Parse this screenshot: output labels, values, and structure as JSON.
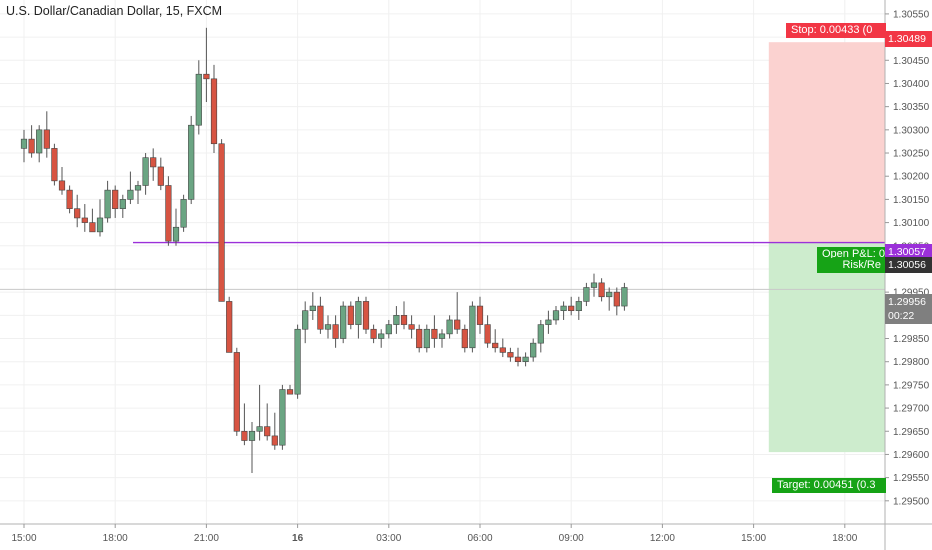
{
  "chart_title": "U.S. Dollar/Canadian Dollar, 15, FXCM",
  "colors": {
    "up": "#6ba583",
    "down": "#d75442",
    "stop_zone": "#fbd2d0",
    "target_zone": "#cdeccd",
    "entry_line": "#9b30d9",
    "stop": "#f23645",
    "target": "#16a316",
    "price_badge": "#7f7f7f",
    "axis_text": "#555555",
    "grid": "#f0f0f0"
  },
  "chart_data": {
    "type": "candlestick",
    "y_range": [
      1.2945,
      1.3058
    ],
    "y_ticks": [
      "1.30550",
      "1.30500",
      "1.30450",
      "1.30400",
      "1.30350",
      "1.30300",
      "1.30250",
      "1.30200",
      "1.30150",
      "1.30100",
      "1.30050",
      "1.30000",
      "1.29950",
      "1.29900",
      "1.29850",
      "1.29800",
      "1.29750",
      "1.29700",
      "1.29650",
      "1.29600",
      "1.29550",
      "1.29500"
    ],
    "x_ticks": [
      {
        "index": 0,
        "label": "15:00",
        "bold": false
      },
      {
        "index": 12,
        "label": "18:00",
        "bold": false
      },
      {
        "index": 24,
        "label": "21:00",
        "bold": false
      },
      {
        "index": 36,
        "label": "16",
        "bold": true
      },
      {
        "index": 48,
        "label": "03:00",
        "bold": false
      },
      {
        "index": 60,
        "label": "06:00",
        "bold": false
      },
      {
        "index": 72,
        "label": "09:00",
        "bold": false
      },
      {
        "index": 84,
        "label": "12:00",
        "bold": false
      },
      {
        "index": 96,
        "label": "15:00",
        "bold": false
      },
      {
        "index": 108,
        "label": "18:00",
        "bold": false
      }
    ],
    "candles": [
      [
        1.3026,
        1.303,
        1.3023,
        1.3028
      ],
      [
        1.3028,
        1.3031,
        1.3024,
        1.3025
      ],
      [
        1.3025,
        1.3031,
        1.3023,
        1.303
      ],
      [
        1.303,
        1.3034,
        1.3024,
        1.3026
      ],
      [
        1.3026,
        1.3027,
        1.3018,
        1.3019
      ],
      [
        1.3019,
        1.3022,
        1.3016,
        1.3017
      ],
      [
        1.3017,
        1.3018,
        1.3012,
        1.3013
      ],
      [
        1.3013,
        1.3016,
        1.3009,
        1.3011
      ],
      [
        1.3011,
        1.3014,
        1.3008,
        1.301
      ],
      [
        1.301,
        1.3013,
        1.3008,
        1.3008
      ],
      [
        1.3008,
        1.3015,
        1.3007,
        1.3011
      ],
      [
        1.3011,
        1.3019,
        1.301,
        1.3017
      ],
      [
        1.3017,
        1.3018,
        1.3011,
        1.3013
      ],
      [
        1.3013,
        1.3016,
        1.3011,
        1.3015
      ],
      [
        1.3015,
        1.3021,
        1.3014,
        1.3017
      ],
      [
        1.3017,
        1.3019,
        1.3014,
        1.3018
      ],
      [
        1.3018,
        1.3025,
        1.3016,
        1.3024
      ],
      [
        1.3024,
        1.3026,
        1.3019,
        1.3022
      ],
      [
        1.3022,
        1.3024,
        1.3017,
        1.3018
      ],
      [
        1.3018,
        1.302,
        1.3005,
        1.3006
      ],
      [
        1.3006,
        1.3013,
        1.3005,
        1.3009
      ],
      [
        1.3009,
        1.3016,
        1.3008,
        1.3015
      ],
      [
        1.3015,
        1.3033,
        1.3014,
        1.3031
      ],
      [
        1.3031,
        1.3045,
        1.3029,
        1.3042
      ],
      [
        1.3042,
        1.3052,
        1.3036,
        1.3041
      ],
      [
        1.3041,
        1.3044,
        1.3025,
        1.3027
      ],
      [
        1.3027,
        1.3028,
        1.2993,
        1.2993
      ],
      [
        1.2993,
        1.2994,
        1.2982,
        1.2982
      ],
      [
        1.2982,
        1.2983,
        1.2964,
        1.2965
      ],
      [
        1.2965,
        1.2971,
        1.2962,
        1.2963
      ],
      [
        1.2963,
        1.2967,
        1.2956,
        1.2965
      ],
      [
        1.2965,
        1.2975,
        1.2963,
        1.2966
      ],
      [
        1.2966,
        1.2971,
        1.2963,
        1.2964
      ],
      [
        1.2964,
        1.2969,
        1.2961,
        1.2962
      ],
      [
        1.2962,
        1.2975,
        1.2961,
        1.2974
      ],
      [
        1.2974,
        1.2975,
        1.2973,
        1.2973
      ],
      [
        1.2973,
        1.2988,
        1.2972,
        1.2987
      ],
      [
        1.2987,
        1.2993,
        1.2984,
        1.2991
      ],
      [
        1.2991,
        1.2995,
        1.2989,
        1.2992
      ],
      [
        1.2992,
        1.2994,
        1.2986,
        1.2987
      ],
      [
        1.2987,
        1.299,
        1.2985,
        1.2988
      ],
      [
        1.2988,
        1.299,
        1.2983,
        1.2985
      ],
      [
        1.2985,
        1.2993,
        1.2984,
        1.2992
      ],
      [
        1.2992,
        1.2993,
        1.2987,
        1.2988
      ],
      [
        1.2988,
        1.2994,
        1.2985,
        1.2993
      ],
      [
        1.2993,
        1.2994,
        1.2986,
        1.2987
      ],
      [
        1.2987,
        1.2988,
        1.2984,
        1.2985
      ],
      [
        1.2985,
        1.2987,
        1.2983,
        1.2986
      ],
      [
        1.2986,
        1.2989,
        1.2985,
        1.2988
      ],
      [
        1.2988,
        1.2992,
        1.2986,
        1.299
      ],
      [
        1.299,
        1.2993,
        1.2987,
        1.2988
      ],
      [
        1.2988,
        1.299,
        1.2985,
        1.2987
      ],
      [
        1.2987,
        1.2988,
        1.2982,
        1.2983
      ],
      [
        1.2983,
        1.2988,
        1.2982,
        1.2987
      ],
      [
        1.2987,
        1.299,
        1.2983,
        1.2985
      ],
      [
        1.2985,
        1.2987,
        1.2983,
        1.2986
      ],
      [
        1.2986,
        1.299,
        1.2985,
        1.2989
      ],
      [
        1.2989,
        1.2995,
        1.2986,
        1.2987
      ],
      [
        1.2987,
        1.2988,
        1.2982,
        1.2983
      ],
      [
        1.2983,
        1.2993,
        1.2982,
        1.2992
      ],
      [
        1.2992,
        1.2994,
        1.2986,
        1.2988
      ],
      [
        1.2988,
        1.299,
        1.2983,
        1.2984
      ],
      [
        1.2984,
        1.2987,
        1.2982,
        1.2983
      ],
      [
        1.2983,
        1.2985,
        1.2981,
        1.2982
      ],
      [
        1.2982,
        1.2983,
        1.298,
        1.2981
      ],
      [
        1.2981,
        1.2983,
        1.2979,
        1.298
      ],
      [
        1.298,
        1.2982,
        1.2979,
        1.2981
      ],
      [
        1.2981,
        1.2985,
        1.298,
        1.2984
      ],
      [
        1.2984,
        1.2989,
        1.2982,
        1.2988
      ],
      [
        1.2988,
        1.2991,
        1.2986,
        1.2989
      ],
      [
        1.2989,
        1.2992,
        1.2988,
        1.2991
      ],
      [
        1.2991,
        1.2993,
        1.2989,
        1.2992
      ],
      [
        1.2992,
        1.2994,
        1.299,
        1.2991
      ],
      [
        1.2991,
        1.2994,
        1.2989,
        1.2993
      ],
      [
        1.2993,
        1.2997,
        1.2992,
        1.2996
      ],
      [
        1.2996,
        1.2999,
        1.2994,
        1.2997
      ],
      [
        1.2997,
        1.2998,
        1.2993,
        1.2994
      ],
      [
        1.2994,
        1.2996,
        1.2991,
        1.2995
      ],
      [
        1.2995,
        1.2996,
        1.299,
        1.2992
      ],
      [
        1.2992,
        1.2997,
        1.2991,
        1.2996
      ]
    ],
    "candle_start_index": 0,
    "entry_price": 1.30057,
    "current_price": 1.29956,
    "stop_price": 1.30489,
    "target_price": 1.29605,
    "position_start_index": 98
  },
  "price_scale": {
    "stop_price_label": "1.30489",
    "entry_price_label": "1.30057",
    "entry_alt_label": "1.30056",
    "current_price_label": "1.29956",
    "countdown": "00:22"
  },
  "position": {
    "stop_label": "Stop: 0.00433 (0",
    "open_pnl_label": "Open P&L: 0",
    "risk_reward_label": "Risk/Re",
    "target_label": "Target: 0.00451 (0.3"
  }
}
